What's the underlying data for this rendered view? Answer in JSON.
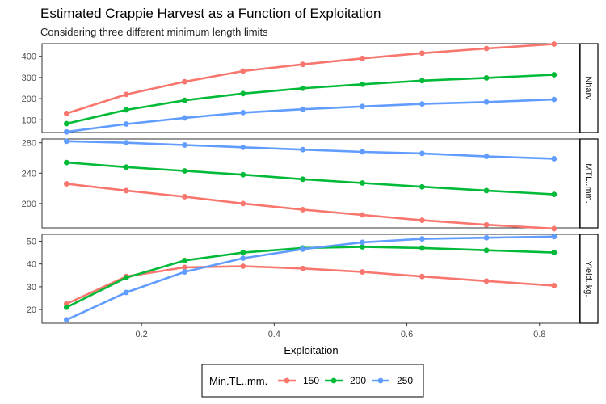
{
  "chart_data": {
    "type": "line",
    "title": "Estimated Crappie Harvest as a Function of Exploitation",
    "subtitle": "Considering three different minimum length limits",
    "xlabel": "Exploitation",
    "x": [
      0.087,
      0.177,
      0.265,
      0.353,
      0.443,
      0.533,
      0.623,
      0.72,
      0.822
    ],
    "x_ticks": [
      "0.2",
      "0.4",
      "0.6",
      "0.8"
    ],
    "x_tick_values": [
      0.2,
      0.4,
      0.6,
      0.8
    ],
    "xlim": [
      0.05,
      0.86
    ],
    "legend": {
      "title": "Min.TL..mm.",
      "position": "bottom",
      "entries": [
        "150",
        "200",
        "250"
      ]
    },
    "colors": {
      "150": "#F8766D",
      "200": "#00BA38",
      "250": "#619CFF"
    },
    "facets": [
      {
        "strip": "Nharv",
        "ylim": [
          40,
          460
        ],
        "y_ticks": [
          "100",
          "200",
          "300",
          "400"
        ],
        "y_tick_values": [
          100,
          200,
          300,
          400
        ],
        "series": [
          {
            "name": "150",
            "values": [
              130,
              220,
              280,
              330,
              362,
              390,
              415,
              437,
              458
            ]
          },
          {
            "name": "200",
            "values": [
              82,
              147,
              192,
              224,
              249,
              268,
              285,
              298,
              313
            ]
          },
          {
            "name": "250",
            "values": [
              43,
              80,
              109,
              134,
              150,
              163,
              175,
              184,
              196
            ]
          }
        ]
      },
      {
        "strip": "MTL..mm.",
        "ylim": [
          168,
          285
        ],
        "y_ticks": [
          "200",
          "240",
          "280"
        ],
        "y_tick_values": [
          200,
          240,
          280
        ],
        "series": [
          {
            "name": "150",
            "values": [
              226,
              217,
              209,
              200,
              192,
              185,
              178,
              172,
              167
            ]
          },
          {
            "name": "200",
            "values": [
              254,
              248,
              243,
              238,
              232,
              227,
              222,
              217,
              212
            ]
          },
          {
            "name": "250",
            "values": [
              282,
              280,
              277,
              274,
              271,
              268,
              266,
              262,
              259
            ]
          }
        ]
      },
      {
        "strip": "Yield..kg.",
        "ylim": [
          14,
          53
        ],
        "y_ticks": [
          "20",
          "30",
          "40",
          "50"
        ],
        "y_tick_values": [
          20,
          30,
          40,
          50
        ],
        "series": [
          {
            "name": "150",
            "values": [
              22.5,
              34.5,
              38.5,
              39,
              38,
              36.5,
              34.5,
              32.5,
              30.5
            ]
          },
          {
            "name": "200",
            "values": [
              21,
              34,
              41.5,
              45,
              47,
              47.5,
              47,
              46,
              45
            ]
          },
          {
            "name": "250",
            "values": [
              15.5,
              27.5,
              36.5,
              42.5,
              46.5,
              49.5,
              51,
              51.5,
              52
            ]
          }
        ]
      }
    ]
  }
}
